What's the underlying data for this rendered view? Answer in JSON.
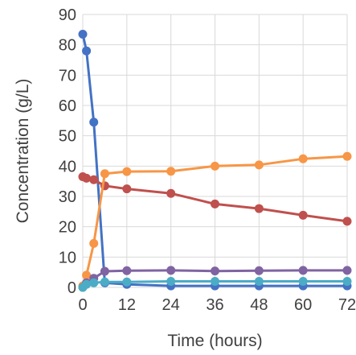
{
  "chart_data": {
    "type": "line",
    "title": "",
    "xlabel": "Time (hours)",
    "ylabel": "Concentration (g/L)",
    "xlim": [
      0,
      72
    ],
    "ylim": [
      0,
      90
    ],
    "xticks": [
      0,
      12,
      24,
      36,
      48,
      60,
      72
    ],
    "yticks": [
      0,
      10,
      20,
      30,
      40,
      50,
      60,
      70,
      80,
      90
    ],
    "grid": true,
    "legend": "none",
    "series": [
      {
        "color": "#4472C4",
        "x": [
          0,
          1,
          3,
          6,
          12,
          24,
          36,
          48,
          60,
          72
        ],
        "y": [
          83.5,
          78,
          54.5,
          1.5,
          1,
          0.5,
          0.5,
          0.5,
          0.5,
          0.5
        ]
      },
      {
        "color": "#C0504D",
        "x": [
          0,
          1,
          3,
          6,
          12,
          24,
          36,
          48,
          60,
          72
        ],
        "y": [
          36.5,
          36,
          35.5,
          33.5,
          32.5,
          31,
          27.5,
          26,
          23.8,
          21.8
        ]
      },
      {
        "color": "#F79646",
        "x": [
          0,
          1,
          3,
          6,
          12,
          24,
          36,
          48,
          60,
          72
        ],
        "y": [
          0.5,
          4,
          14.5,
          37.5,
          38.2,
          38.3,
          40,
          40.4,
          42.4,
          43.2
        ]
      },
      {
        "color": "#8064A2",
        "x": [
          0,
          1,
          3,
          6,
          12,
          24,
          36,
          48,
          60,
          72
        ],
        "y": [
          0,
          1.5,
          3,
          5.3,
          5.5,
          5.6,
          5.4,
          5.5,
          5.6,
          5.6
        ]
      },
      {
        "color": "#4BACC6",
        "x": [
          0,
          1,
          3,
          6,
          12,
          24,
          36,
          48,
          60,
          72
        ],
        "y": [
          0,
          1,
          1.5,
          1.8,
          1.8,
          2,
          2,
          2,
          2,
          2
        ]
      }
    ]
  }
}
